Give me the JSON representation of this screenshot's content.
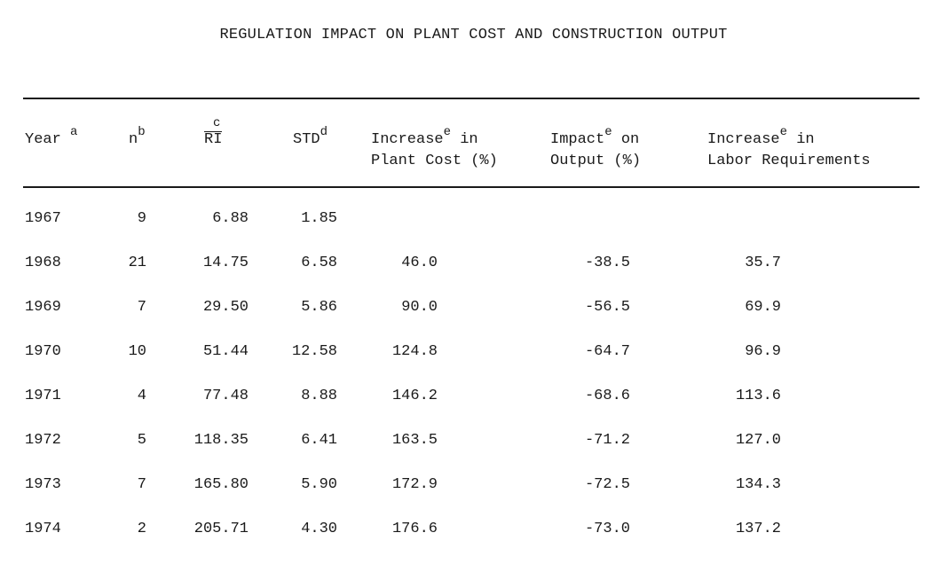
{
  "title": "REGULATION IMPACT ON PLANT COST AND CONSTRUCTION OUTPUT",
  "headers": {
    "year": {
      "label": "Year",
      "note": "a"
    },
    "n": {
      "label": "n",
      "note": "b"
    },
    "ri": {
      "label": "RI",
      "note": "c"
    },
    "std": {
      "label": "STD",
      "note": "d"
    },
    "cost": {
      "line1": "Increase",
      "note": "e",
      "line1b": "in",
      "line2": "Plant Cost (%)"
    },
    "impact": {
      "line1": "Impact",
      "note": "e",
      "line1b": "on",
      "line2": "Output (%)"
    },
    "labor": {
      "line1": "Increase",
      "note": "e",
      "line1b": "in",
      "line2": "Labor Requirements"
    }
  },
  "rows": [
    {
      "year": "1967",
      "n": "9",
      "ri": "6.88",
      "std": "1.85",
      "cost": "",
      "impact": "",
      "labor": ""
    },
    {
      "year": "1968",
      "n": "21",
      "ri": "14.75",
      "std": "6.58",
      "cost": "46.0",
      "impact": "-38.5",
      "labor": "35.7"
    },
    {
      "year": "1969",
      "n": "7",
      "ri": "29.50",
      "std": "5.86",
      "cost": "90.0",
      "impact": "-56.5",
      "labor": "69.9"
    },
    {
      "year": "1970",
      "n": "10",
      "ri": "51.44",
      "std": "12.58",
      "cost": "124.8",
      "impact": "-64.7",
      "labor": "96.9"
    },
    {
      "year": "1971",
      "n": "4",
      "ri": "77.48",
      "std": "8.88",
      "cost": "146.2",
      "impact": "-68.6",
      "labor": "113.6"
    },
    {
      "year": "1972",
      "n": "5",
      "ri": "118.35",
      "std": "6.41",
      "cost": "163.5",
      "impact": "-71.2",
      "labor": "127.0"
    },
    {
      "year": "1973",
      "n": "7",
      "ri": "165.80",
      "std": "5.90",
      "cost": "172.9",
      "impact": "-72.5",
      "labor": "134.3"
    },
    {
      "year": "1974",
      "n": "2",
      "ri": "205.71",
      "std": "4.30",
      "cost": "176.6",
      "impact": "-73.0",
      "labor": "137.2"
    }
  ]
}
